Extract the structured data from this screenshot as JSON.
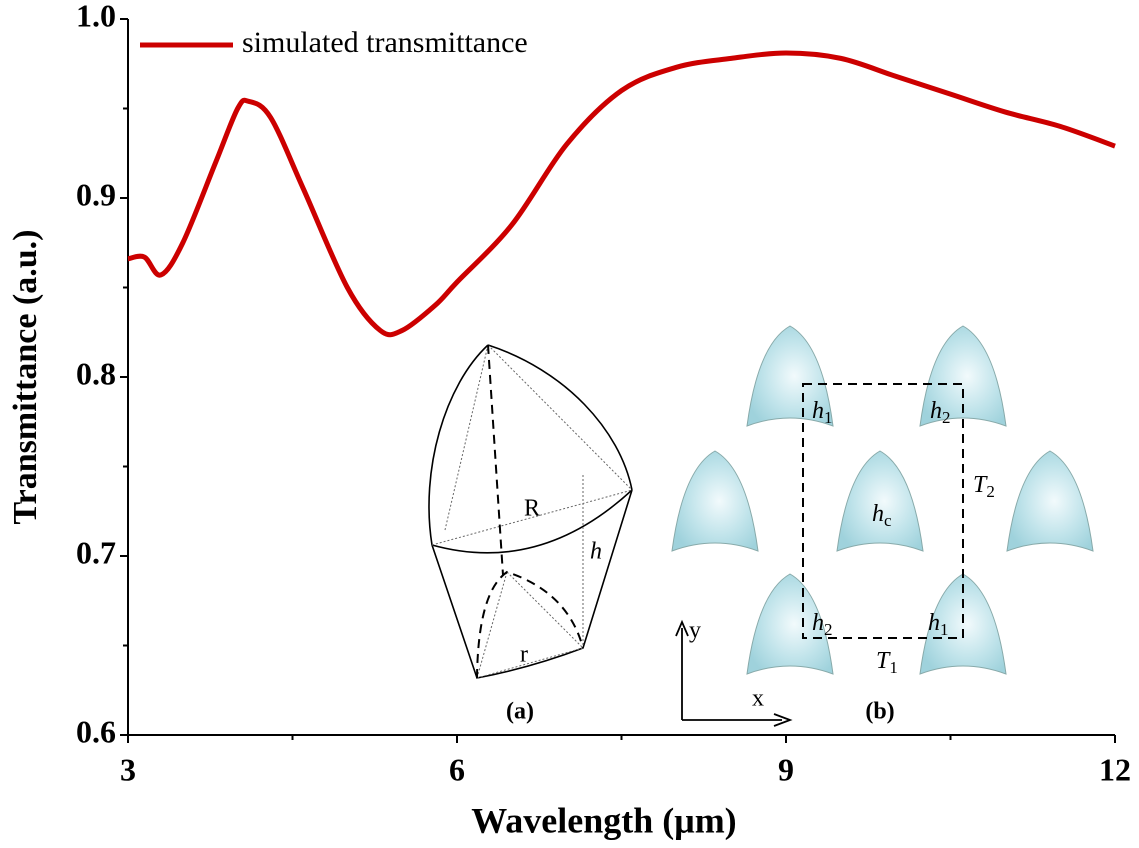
{
  "chart_data": {
    "type": "line",
    "x_label": "Wavelength (μm)",
    "y_label": "Transmittance (a.u.)",
    "x": [
      3.0,
      3.15,
      3.3,
      3.5,
      3.8,
      4.0,
      4.1,
      4.3,
      4.6,
      5.0,
      5.3,
      5.5,
      5.8,
      6.0,
      6.5,
      7.0,
      7.5,
      8.0,
      8.5,
      9.0,
      9.5,
      10.0,
      10.5,
      11.0,
      11.5,
      12.0
    ],
    "series": [
      {
        "name": "simulated transmittance",
        "color": "#cc0000",
        "values": [
          0.866,
          0.867,
          0.857,
          0.875,
          0.92,
          0.95,
          0.954,
          0.945,
          0.905,
          0.85,
          0.826,
          0.826,
          0.84,
          0.853,
          0.885,
          0.93,
          0.96,
          0.973,
          0.978,
          0.981,
          0.978,
          0.968,
          0.958,
          0.948,
          0.94,
          0.929
        ]
      }
    ],
    "xlim": [
      3,
      12
    ],
    "xticks": [
      3,
      6,
      9,
      12
    ],
    "xminorticks": [
      4.5,
      7.5,
      10.5
    ],
    "ylim": [
      0.6,
      1.0
    ],
    "yticks": [
      {
        "value": 0.6,
        "label": "0.6"
      },
      {
        "value": 0.7,
        "label": "0.7"
      },
      {
        "value": 0.8,
        "label": "0.8"
      },
      {
        "value": 0.9,
        "label": "0.9"
      },
      {
        "value": 1.0,
        "label": "1.0"
      }
    ],
    "yminorticks": [
      0.65,
      0.75,
      0.85,
      0.95
    ],
    "legend": "top-left",
    "annotations": [
      {
        "text": "(a)"
      },
      {
        "text": "(b)"
      },
      {
        "text": "R"
      },
      {
        "text": "h"
      },
      {
        "text": "r"
      },
      {
        "text": "x"
      },
      {
        "text": "y"
      },
      {
        "text": "h",
        "sub": "1"
      },
      {
        "text": "h",
        "sub": "2"
      },
      {
        "text": "h",
        "sub": "c"
      },
      {
        "text": "h",
        "sub": "2"
      },
      {
        "text": "h",
        "sub": "1"
      },
      {
        "text": "T",
        "sub": "2"
      },
      {
        "text": "T",
        "sub": "1"
      }
    ]
  }
}
